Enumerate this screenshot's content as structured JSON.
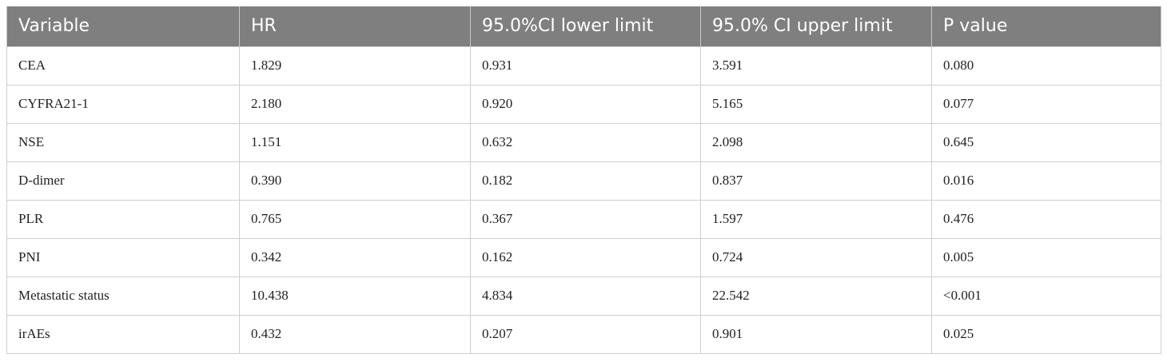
{
  "table": {
    "header": [
      "Variable",
      "HR",
      "95.0%CI lower limit",
      "95.0% CI upper limit",
      "P value"
    ],
    "rows": [
      [
        "CEA",
        "1.829",
        "0.931",
        "3.591",
        "0.080"
      ],
      [
        "CYFRA21-1",
        "2.180",
        "0.920",
        "5.165",
        "0.077"
      ],
      [
        "NSE",
        "1.151",
        "0.632",
        "2.098",
        "0.645"
      ],
      [
        "D-dimer",
        "0.390",
        "0.182",
        "0.837",
        "0.016"
      ],
      [
        "PLR",
        "0.765",
        "0.367",
        "1.597",
        "0.476"
      ],
      [
        "PNI",
        "0.342",
        "0.162",
        "0.724",
        "0.005"
      ],
      [
        "Metastatic status",
        "10.438",
        "4.834",
        "22.542",
        "<0.001"
      ],
      [
        "irAEs",
        "0.432",
        "0.207",
        "0.901",
        "0.025"
      ]
    ]
  }
}
